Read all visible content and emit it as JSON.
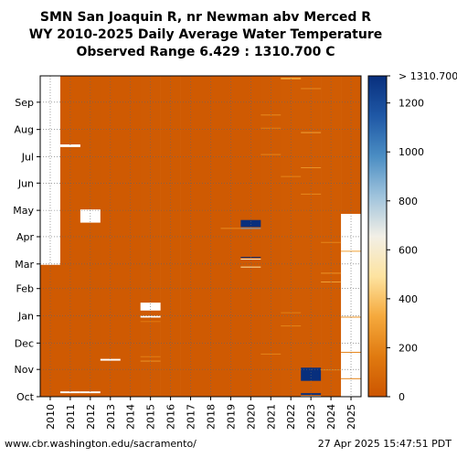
{
  "title_lines": [
    "SMN San Joaquin R, nr Newman abv Merced R",
    "WY 2010-2025 Daily Average Water Temperature",
    "Observed Range 6.429 : 1310.700 C"
  ],
  "footer": {
    "source": "www.cbr.washington.edu/sacramento/",
    "timestamp": "27 Apr 2025 15:47:51 PDT"
  },
  "chart_data": {
    "type": "heatmap",
    "x_categories": [
      "2010",
      "2011",
      "2012",
      "2013",
      "2014",
      "2015",
      "2016",
      "2017",
      "2018",
      "2019",
      "2020",
      "2021",
      "2022",
      "2023",
      "2024",
      "2025"
    ],
    "y_tick_labels": [
      "Oct",
      "Nov",
      "Dec",
      "Jan",
      "Feb",
      "Mar",
      "Apr",
      "May",
      "Jun",
      "Jul",
      "Aug",
      "Sep"
    ],
    "y_month_day_offsets": [
      0,
      31,
      61,
      92,
      123,
      151,
      182,
      212,
      243,
      273,
      304,
      335
    ],
    "y_range_days": [
      0,
      365
    ],
    "colorbar": {
      "range": [
        0,
        1310.7
      ],
      "ticks": [
        0,
        200,
        400,
        600,
        800,
        1000,
        1200
      ],
      "top_label": "> 1310.700",
      "colors": [
        "#cc5500",
        "#e07a10",
        "#f5a93c",
        "#fde3a0",
        "#f2efe6",
        "#9fc3dc",
        "#4a8dc3",
        "#1f58a6",
        "#082f7d"
      ]
    },
    "base_value": 25,
    "year_base_values": [
      22,
      23,
      20,
      22,
      24,
      26,
      25,
      23,
      22,
      21,
      22,
      27,
      29,
      30,
      30,
      28
    ],
    "missing": [
      {
        "year": "2010",
        "from_day": 150,
        "to_day": 365
      },
      {
        "year": "2011",
        "from_day": 4,
        "to_day": 6
      },
      {
        "year": "2011",
        "from_day": 284,
        "to_day": 287
      },
      {
        "year": "2012",
        "from_day": 4,
        "to_day": 6
      },
      {
        "year": "2012",
        "from_day": 198,
        "to_day": 213
      },
      {
        "year": "2013",
        "from_day": 41,
        "to_day": 43
      },
      {
        "year": "2015",
        "from_day": 98,
        "to_day": 107
      },
      {
        "year": "2015",
        "from_day": 90,
        "to_day": 92
      },
      {
        "year": "2025",
        "from_day": 0,
        "to_day": 208
      }
    ],
    "anomalies": [
      {
        "year": "2015",
        "from_day": 40,
        "to_day": 41,
        "value": 250
      },
      {
        "year": "2015",
        "from_day": 45,
        "to_day": 46,
        "value": 180
      },
      {
        "year": "2015",
        "from_day": 85,
        "to_day": 86,
        "value": 160
      },
      {
        "year": "2019",
        "from_day": 191,
        "to_day": 192,
        "value": 220
      },
      {
        "year": "2020",
        "from_day": 193,
        "to_day": 201,
        "value": 1310
      },
      {
        "year": "2020",
        "from_day": 191,
        "to_day": 192,
        "value": 900
      },
      {
        "year": "2020",
        "from_day": 158,
        "to_day": 159,
        "value": 1310
      },
      {
        "year": "2020",
        "from_day": 156,
        "to_day": 157,
        "value": 600
      },
      {
        "year": "2020",
        "from_day": 147,
        "to_day": 148,
        "value": 500
      },
      {
        "year": "2021",
        "from_day": 48,
        "to_day": 49,
        "value": 200
      },
      {
        "year": "2021",
        "from_day": 275,
        "to_day": 276,
        "value": 200
      },
      {
        "year": "2021",
        "from_day": 305,
        "to_day": 306,
        "value": 180
      },
      {
        "year": "2021",
        "from_day": 320,
        "to_day": 321,
        "value": 220
      },
      {
        "year": "2022",
        "from_day": 361,
        "to_day": 363,
        "value": 300
      },
      {
        "year": "2022",
        "from_day": 80,
        "to_day": 81,
        "value": 200
      },
      {
        "year": "2022",
        "from_day": 95,
        "to_day": 96,
        "value": 180
      },
      {
        "year": "2022",
        "from_day": 250,
        "to_day": 251,
        "value": 200
      },
      {
        "year": "2023",
        "from_day": 18,
        "to_day": 33,
        "value": 1310
      },
      {
        "year": "2023",
        "from_day": 2,
        "to_day": 4,
        "value": 1310
      },
      {
        "year": "2023",
        "from_day": 0,
        "to_day": 1,
        "value": 700
      },
      {
        "year": "2023",
        "from_day": 300,
        "to_day": 301,
        "value": 300
      },
      {
        "year": "2023",
        "from_day": 260,
        "to_day": 261,
        "value": 250
      },
      {
        "year": "2023",
        "from_day": 230,
        "to_day": 231,
        "value": 220
      },
      {
        "year": "2023",
        "from_day": 350,
        "to_day": 351,
        "value": 220
      },
      {
        "year": "2024",
        "from_day": 130,
        "to_day": 131,
        "value": 300
      },
      {
        "year": "2024",
        "from_day": 140,
        "to_day": 141,
        "value": 250
      },
      {
        "year": "2024",
        "from_day": 175,
        "to_day": 176,
        "value": 200
      },
      {
        "year": "2024",
        "from_day": 30,
        "to_day": 31,
        "value": 220
      },
      {
        "year": "2025",
        "from_day": 165,
        "to_day": 166,
        "value": 300
      },
      {
        "year": "2025",
        "from_day": 90,
        "to_day": 91,
        "value": 250
      },
      {
        "year": "2025",
        "from_day": 50,
        "to_day": 51,
        "value": 200
      },
      {
        "year": "2025",
        "from_day": 20,
        "to_day": 21,
        "value": 200
      }
    ]
  }
}
